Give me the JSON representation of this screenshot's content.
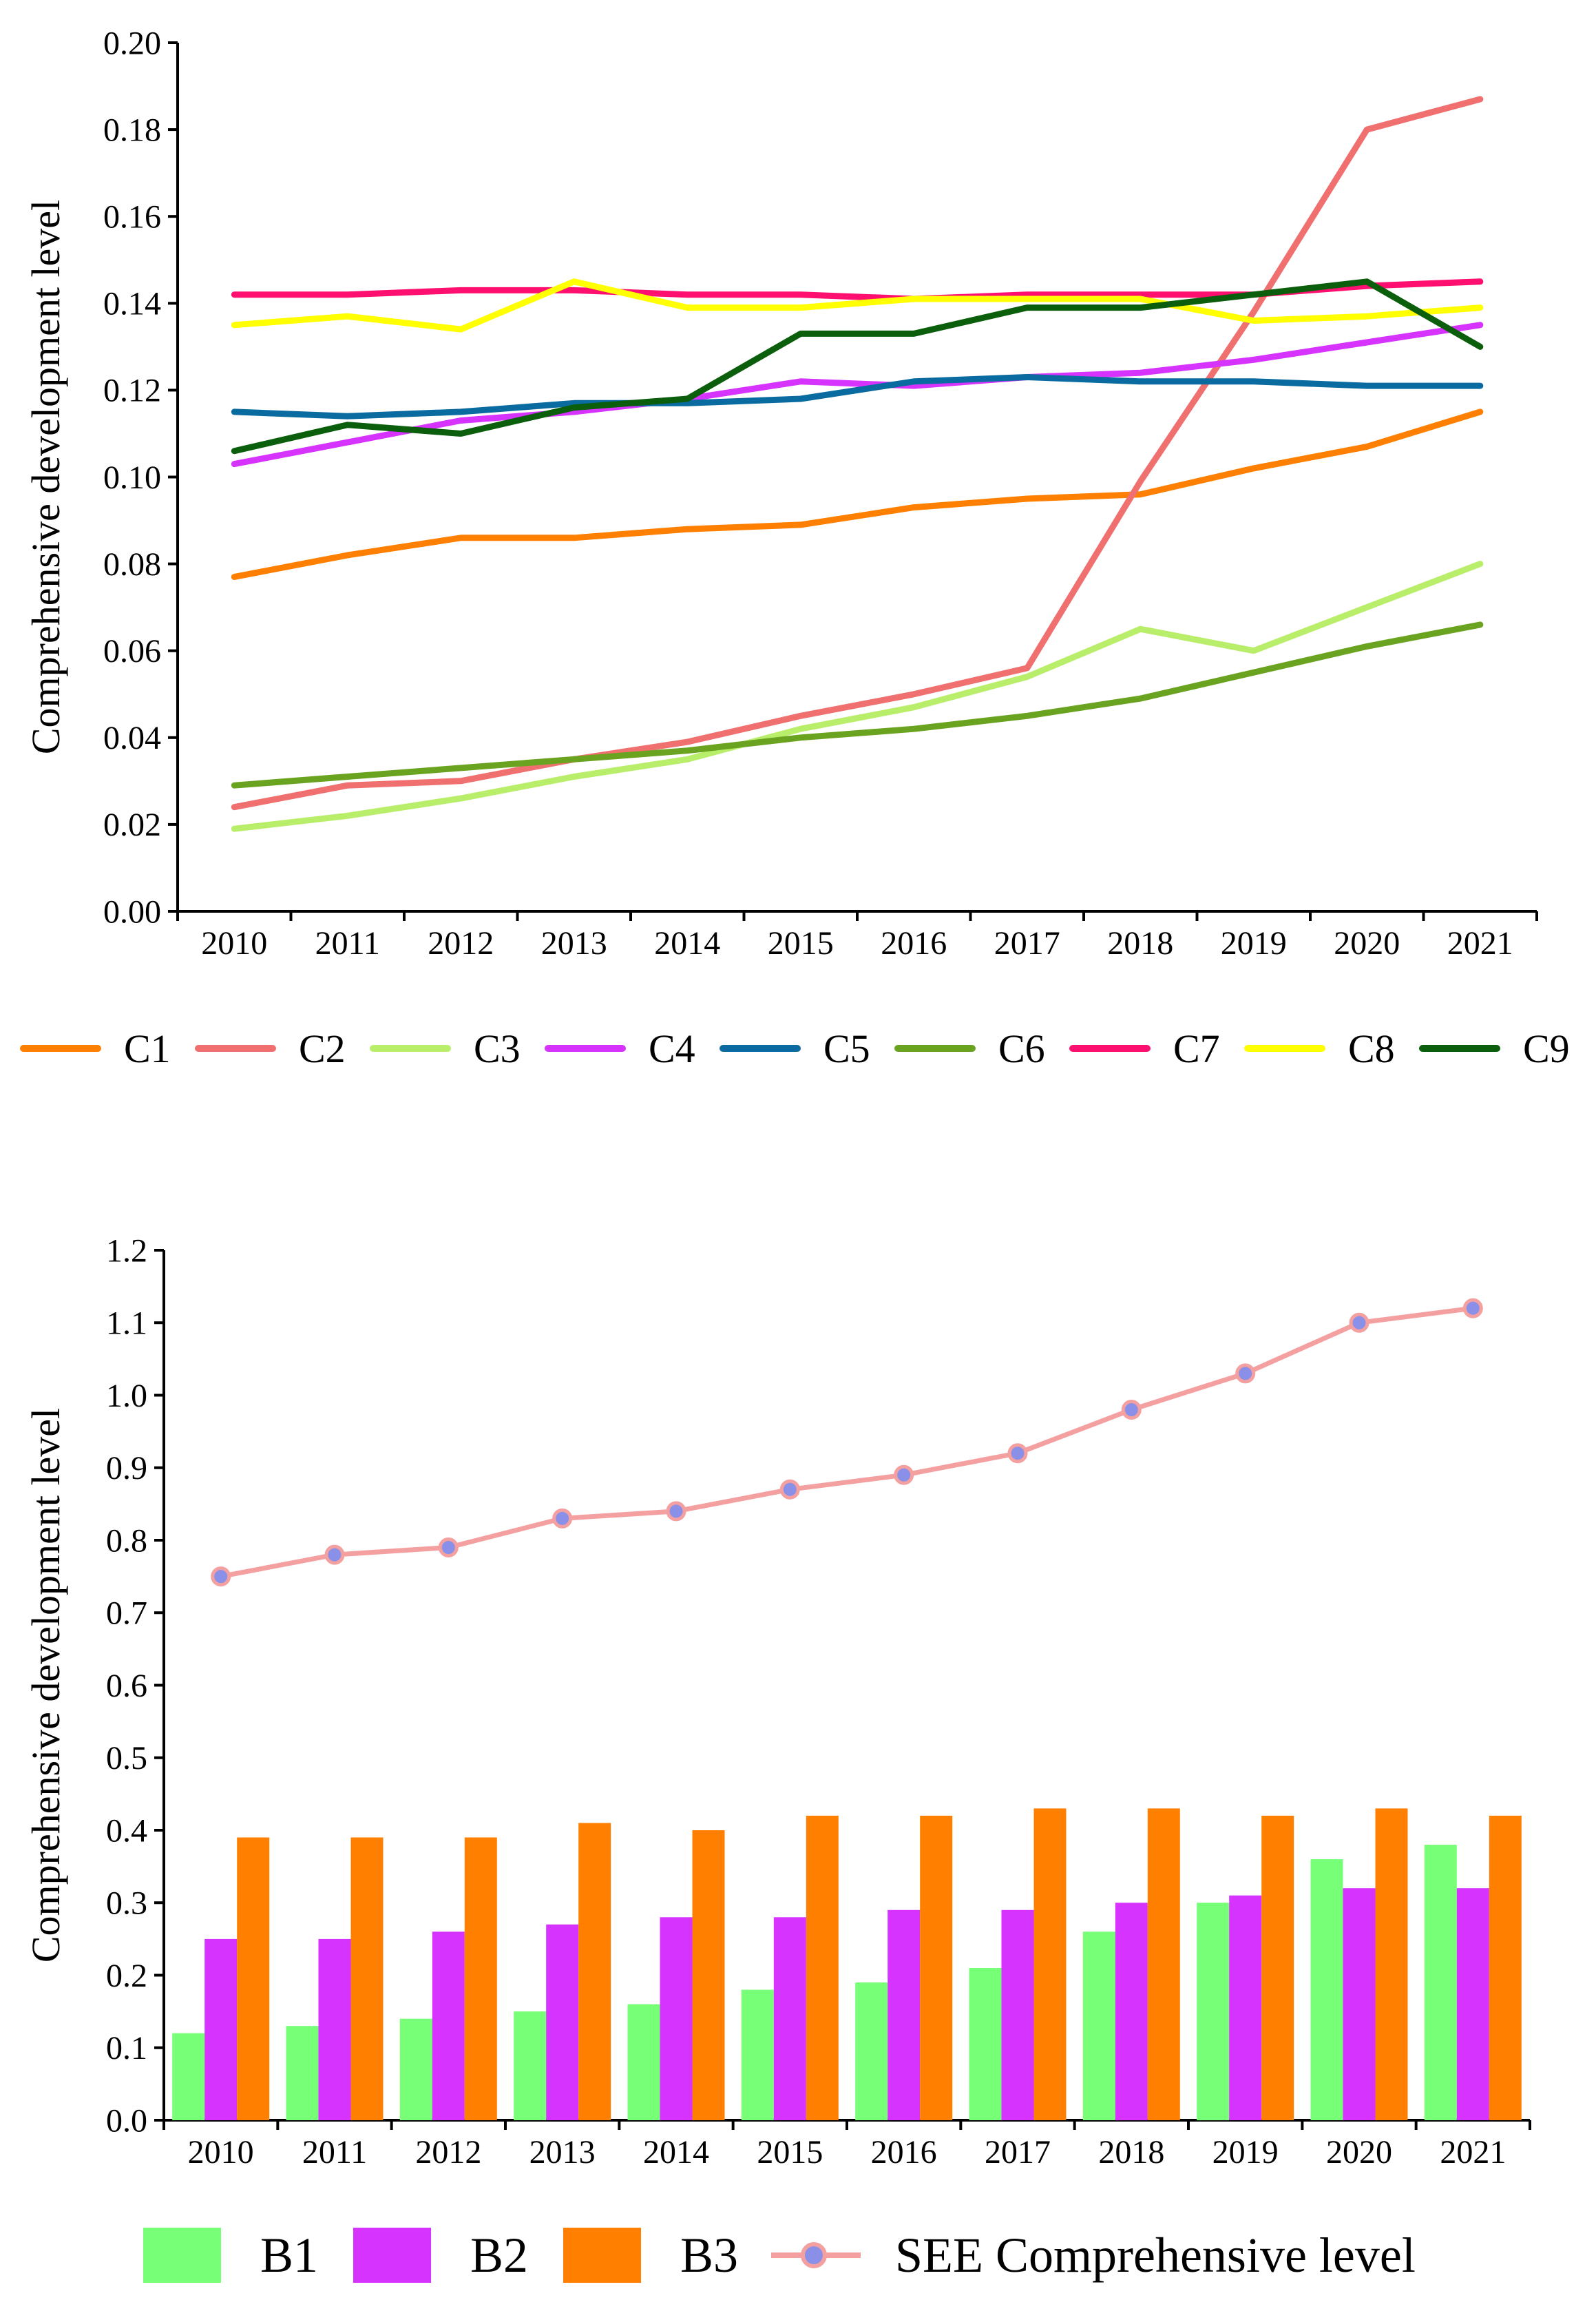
{
  "chart_data": [
    {
      "type": "line",
      "title": "",
      "xlabel": "",
      "ylabel": "Comprehensive development level",
      "ylim": [
        0,
        0.2
      ],
      "yticks": [
        "0.00",
        "0.02",
        "0.04",
        "0.06",
        "0.08",
        "0.10",
        "0.12",
        "0.14",
        "0.16",
        "0.18",
        "0.20"
      ],
      "categories": [
        "2010",
        "2011",
        "2012",
        "2013",
        "2014",
        "2015",
        "2016",
        "2017",
        "2018",
        "2019",
        "2020",
        "2021"
      ],
      "legend_position": "bottom",
      "series": [
        {
          "name": "C1",
          "color": "#FF7F00",
          "values": [
            0.077,
            0.082,
            0.086,
            0.086,
            0.088,
            0.089,
            0.093,
            0.095,
            0.096,
            0.102,
            0.107,
            0.115
          ]
        },
        {
          "name": "C2",
          "color": "#F07070",
          "values": [
            0.024,
            0.029,
            0.03,
            0.035,
            0.039,
            0.045,
            0.05,
            0.056,
            0.099,
            0.138,
            0.18,
            0.187
          ]
        },
        {
          "name": "C3",
          "color": "#B8EE6A",
          "values": [
            0.019,
            0.022,
            0.026,
            0.031,
            0.035,
            0.042,
            0.047,
            0.054,
            0.065,
            0.06,
            0.07,
            0.08
          ]
        },
        {
          "name": "C4",
          "color": "#D633FF",
          "values": [
            0.103,
            0.108,
            0.113,
            0.115,
            0.118,
            0.122,
            0.121,
            0.123,
            0.124,
            0.127,
            0.131,
            0.135
          ]
        },
        {
          "name": "C5",
          "color": "#0A6BA0",
          "values": [
            0.115,
            0.114,
            0.115,
            0.117,
            0.117,
            0.118,
            0.122,
            0.123,
            0.122,
            0.122,
            0.121,
            0.121
          ]
        },
        {
          "name": "C6",
          "color": "#6AA31F",
          "values": [
            0.029,
            0.031,
            0.033,
            0.035,
            0.037,
            0.04,
            0.042,
            0.045,
            0.049,
            0.055,
            0.061,
            0.066
          ]
        },
        {
          "name": "C7",
          "color": "#FF0F6F",
          "values": [
            0.142,
            0.142,
            0.143,
            0.143,
            0.142,
            0.142,
            0.141,
            0.142,
            0.142,
            0.142,
            0.144,
            0.145
          ]
        },
        {
          "name": "C8",
          "color": "#FFFF00",
          "values": [
            0.135,
            0.137,
            0.134,
            0.145,
            0.139,
            0.139,
            0.141,
            0.141,
            0.141,
            0.136,
            0.137,
            0.139
          ]
        },
        {
          "name": "C9",
          "color": "#0B5E0B",
          "values": [
            0.106,
            0.112,
            0.11,
            0.116,
            0.118,
            0.133,
            0.133,
            0.139,
            0.139,
            0.142,
            0.145,
            0.13
          ]
        }
      ]
    },
    {
      "type": "bar",
      "title": "",
      "xlabel": "",
      "ylabel": "Comprehensive development level",
      "ylim": [
        0,
        1.2
      ],
      "yticks": [
        "0.0",
        "0.1",
        "0.2",
        "0.3",
        "0.4",
        "0.5",
        "0.6",
        "0.7",
        "0.8",
        "0.9",
        "1.0",
        "1.1",
        "1.2"
      ],
      "categories": [
        "2010",
        "2011",
        "2012",
        "2013",
        "2014",
        "2015",
        "2016",
        "2017",
        "2018",
        "2019",
        "2020",
        "2021"
      ],
      "legend_position": "bottom",
      "series": [
        {
          "name": "B1",
          "kind": "bar",
          "color": "#77FF77",
          "values": [
            0.12,
            0.13,
            0.14,
            0.15,
            0.16,
            0.18,
            0.19,
            0.21,
            0.26,
            0.3,
            0.36,
            0.38
          ]
        },
        {
          "name": "B2",
          "kind": "bar",
          "color": "#D633FF",
          "values": [
            0.25,
            0.25,
            0.26,
            0.27,
            0.28,
            0.28,
            0.29,
            0.29,
            0.3,
            0.31,
            0.32,
            0.32
          ]
        },
        {
          "name": "B3",
          "kind": "bar",
          "color": "#FF7F00",
          "values": [
            0.39,
            0.39,
            0.39,
            0.41,
            0.4,
            0.42,
            0.42,
            0.43,
            0.43,
            0.42,
            0.43,
            0.42
          ]
        },
        {
          "name": "SEE Comprehensive level",
          "kind": "line",
          "color": "#F4A0A0",
          "marker_color": "#8A90E8",
          "values": [
            0.75,
            0.78,
            0.79,
            0.83,
            0.84,
            0.87,
            0.89,
            0.92,
            0.98,
            1.03,
            1.1,
            1.12
          ]
        }
      ]
    }
  ]
}
